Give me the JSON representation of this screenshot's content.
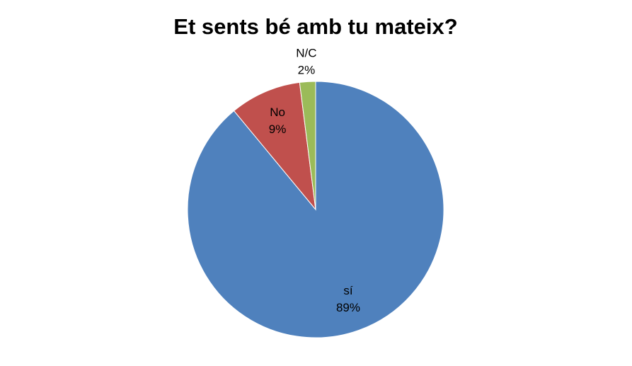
{
  "chart_data": {
    "type": "pie",
    "title": "Et sents bé amb tu mateix?",
    "categories": [
      "sí",
      "No",
      "N/C"
    ],
    "values": [
      89,
      9,
      2
    ],
    "value_labels": [
      "89%",
      "9%",
      "2%"
    ],
    "colors": [
      "#4f81bd",
      "#c0504d",
      "#9bbb59"
    ]
  }
}
